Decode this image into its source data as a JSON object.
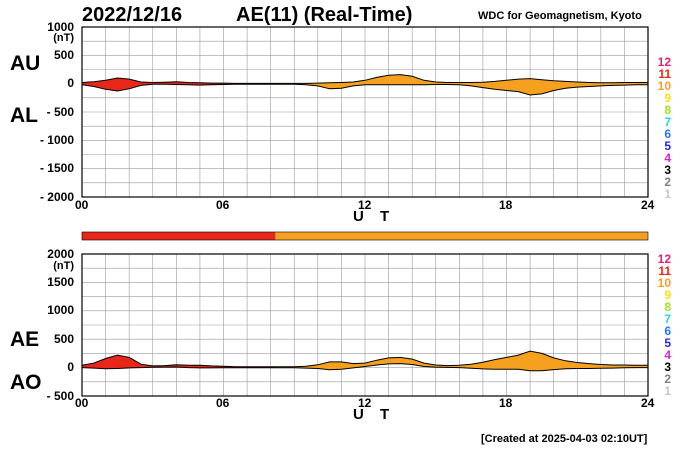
{
  "header": {
    "date": "2022/12/16",
    "title": "AE(11) (Real-Time)",
    "credit": "WDC for Geomagnetism, Kyoto"
  },
  "footer": {
    "created": "[Created at 2025-04-03 02:10UT]"
  },
  "colors": {
    "red": "#e8261a",
    "orange": "#f5a01f",
    "grid": "#9a9a9a",
    "outline": "#000000"
  },
  "chart_data": [
    {
      "type": "area",
      "id": "au-al",
      "series_labels": [
        "AU",
        "AL"
      ],
      "xlabel": "U T",
      "ylabel": "",
      "unit": "(nT)",
      "xlim": [
        0,
        24
      ],
      "ylim": [
        -2000,
        1000
      ],
      "xticks": [
        "00",
        "06",
        "12",
        "18",
        "24"
      ],
      "yticks": [
        "1000",
        "500",
        "0",
        "- 500",
        "- 1000",
        "- 1500",
        "- 2000"
      ],
      "x_hours": [
        0,
        0.5,
        1,
        1.5,
        2,
        2.5,
        3,
        3.5,
        4,
        4.5,
        5,
        5.5,
        6,
        6.5,
        7,
        7.5,
        8,
        8.5,
        9,
        9.5,
        10,
        10.5,
        11,
        11.5,
        12,
        12.5,
        13,
        13.5,
        14,
        14.5,
        15,
        15.5,
        16,
        16.5,
        17,
        17.5,
        18,
        18.5,
        19,
        19.5,
        20,
        20.5,
        21,
        21.5,
        22,
        22.5,
        23,
        23.5,
        24
      ],
      "series": [
        {
          "name": "AU",
          "values": [
            20,
            35,
            60,
            100,
            80,
            30,
            20,
            25,
            35,
            20,
            15,
            10,
            10,
            5,
            5,
            5,
            5,
            5,
            5,
            5,
            10,
            15,
            20,
            30,
            60,
            110,
            150,
            160,
            130,
            60,
            30,
            20,
            20,
            20,
            25,
            40,
            60,
            80,
            90,
            70,
            50,
            40,
            30,
            20,
            15,
            15,
            20,
            20,
            20
          ]
        },
        {
          "name": "AL",
          "values": [
            -20,
            -50,
            -100,
            -130,
            -90,
            -30,
            -10,
            -10,
            -15,
            -20,
            -25,
            -20,
            -15,
            -10,
            -10,
            -10,
            -10,
            -10,
            -10,
            -20,
            -40,
            -90,
            -80,
            -40,
            -20,
            -20,
            -20,
            -20,
            -20,
            -20,
            -15,
            -15,
            -20,
            -40,
            -70,
            -100,
            -120,
            -140,
            -200,
            -180,
            -120,
            -80,
            -60,
            -50,
            -40,
            -30,
            -25,
            -20,
            -20
          ]
        }
      ]
    },
    {
      "type": "area",
      "id": "ae-ao",
      "series_labels": [
        "AE",
        "AO"
      ],
      "xlabel": "U T",
      "ylabel": "",
      "unit": "(nT)",
      "xlim": [
        0,
        24
      ],
      "ylim": [
        -500,
        2000
      ],
      "xticks": [
        "00",
        "06",
        "12",
        "18",
        "24"
      ],
      "yticks": [
        "2000",
        "1500",
        "1000",
        "500",
        "0",
        "- 500"
      ],
      "x_hours": [
        0,
        0.5,
        1,
        1.5,
        2,
        2.5,
        3,
        3.5,
        4,
        4.5,
        5,
        5.5,
        6,
        6.5,
        7,
        7.5,
        8,
        8.5,
        9,
        9.5,
        10,
        10.5,
        11,
        11.5,
        12,
        12.5,
        13,
        13.5,
        14,
        14.5,
        15,
        15.5,
        16,
        16.5,
        17,
        17.5,
        18,
        18.5,
        19,
        19.5,
        20,
        20.5,
        21,
        21.5,
        22,
        22.5,
        23,
        23.5,
        24
      ],
      "series": [
        {
          "name": "AE",
          "values": [
            40,
            80,
            160,
            220,
            180,
            60,
            30,
            35,
            50,
            40,
            40,
            30,
            25,
            15,
            15,
            15,
            15,
            15,
            15,
            25,
            50,
            100,
            100,
            70,
            80,
            130,
            170,
            180,
            150,
            80,
            45,
            35,
            40,
            60,
            95,
            140,
            180,
            220,
            290,
            250,
            170,
            120,
            90,
            70,
            55,
            45,
            45,
            40,
            40
          ]
        },
        {
          "name": "AO",
          "values": [
            0,
            -8,
            -20,
            -15,
            -5,
            0,
            5,
            8,
            10,
            0,
            -5,
            -5,
            -3,
            -3,
            -3,
            -3,
            -3,
            -3,
            -3,
            -8,
            -15,
            -38,
            -30,
            -5,
            20,
            45,
            65,
            70,
            55,
            20,
            8,
            3,
            0,
            -10,
            -23,
            -30,
            -30,
            -30,
            -55,
            -55,
            -35,
            -20,
            -15,
            -15,
            -12,
            -8,
            -3,
            0,
            0
          ]
        }
      ]
    }
  ],
  "bar": {
    "segments": [
      {
        "from_hour": 0,
        "to_hour": 8.2,
        "color": "#e8261a"
      },
      {
        "from_hour": 8.2,
        "to_hour": 24,
        "color": "#f5a01f"
      }
    ]
  },
  "legend_levels": [
    {
      "label": "12",
      "color": "#e61e78"
    },
    {
      "label": "11",
      "color": "#e8261a"
    },
    {
      "label": "10",
      "color": "#f5a01f"
    },
    {
      "label": "9",
      "color": "#f2e21e"
    },
    {
      "label": "8",
      "color": "#a6dc2a"
    },
    {
      "label": "7",
      "color": "#2ad6d6"
    },
    {
      "label": "6",
      "color": "#2a78e6"
    },
    {
      "label": "5",
      "color": "#2a2acc"
    },
    {
      "label": "4",
      "color": "#cc2acc"
    },
    {
      "label": "3",
      "color": "#000000"
    },
    {
      "label": "2",
      "color": "#808080"
    },
    {
      "label": "1",
      "color": "#c8c8c8"
    }
  ]
}
